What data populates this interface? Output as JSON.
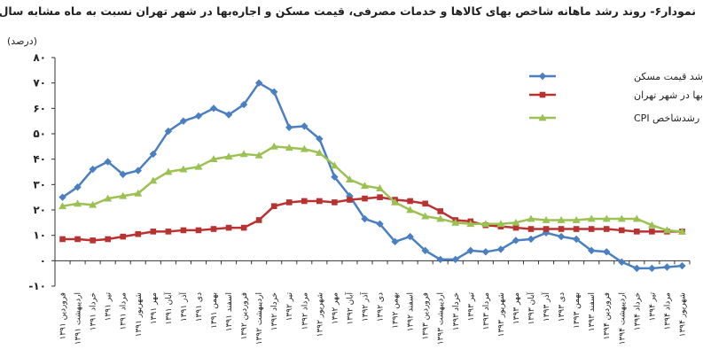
{
  "title": "نمودار۶- روند رشد ماهانه شاخص بهای کالاها و خدمات مصرفی، قیمت مسکن و اجاره‌بها در شهر تهران نسبت به ماه مشابه سال قبل",
  "chart_data": {
    "type": "line",
    "title": "نمودار۶- روند رشد ماهانه شاخص بهای کالاها و خدمات مصرفی، قیمت مسکن و اجاره‌بها در شهر تهران نسبت به ماه مشابه سال قبل",
    "ylabel": "(درصد)",
    "xlabel": "",
    "ylim": [
      -10,
      80
    ],
    "yticks": [
      "-۱۰",
      "۰",
      "۱۰",
      "۲۰",
      "۳۰",
      "۴۰",
      "۵۰",
      "۶۰",
      "۷۰",
      "۸۰"
    ],
    "ytick_values": [
      -10,
      0,
      10,
      20,
      30,
      40,
      50,
      60,
      70,
      80
    ],
    "grid": false,
    "legend_position": "top-right",
    "categories": [
      "فروردین ۱۳۹۱",
      "اردیبهشت ۱۳۹۱",
      "خرداد ۱۳۹۱",
      "تیر ۱۳۹۱",
      "مرداد ۱۳۹۱",
      "شهریور ۱۳۹۱",
      "مهر ۱۳۹۱",
      "آبان ۱۳۹۱",
      "آذر ۱۳۹۱",
      "دی ۱۳۹۱",
      "بهمن ۱۳۹۱",
      "اسفند ۱۳۹۱",
      "فروردین ۱۳۹۲",
      "اردیبهشت ۱۳۹۲",
      "خرداد ۱۳۹۲",
      "تیر ۱۳۹۲",
      "مرداد ۱۳۹۲",
      "شهریور ۱۳۹۲",
      "مهر ۱۳۹۲",
      "آبان ۱۳۹۲",
      "آذر ۱۳۹۲",
      "دی ۱۳۹۲",
      "بهمن ۱۳۹۲",
      "اسفند ۱۳۹۲",
      "فروردین ۱۳۹۳",
      "اردیبهشت ۱۳۹۳",
      "خرداد ۱۳۹۳",
      "تیر ۱۳۹۳",
      "مرداد ۱۳۹۳",
      "شهریور ۱۳۹۳",
      "مهر ۱۳۹۳",
      "آبان ۱۳۹۳",
      "آذر ۱۳۹۳",
      "دی ۱۳۹۳",
      "بهمن ۱۳۹۳",
      "اسفند ۱۳۹۳",
      "فروردین ۱۳۹۴",
      "اردیبهشت ۱۳۹۴",
      "خرداد ۱۳۹۴",
      "تیر ۱۳۹۴",
      "مرداد ۱۳۹۴",
      "شهریور ۱۳۹۴"
    ],
    "series": [
      {
        "name": "نرخ رشد قیمت مسکن",
        "color": "#4a7fc1",
        "marker": "diamond",
        "values": [
          25,
          29,
          36,
          39,
          34,
          35.5,
          42,
          51,
          55,
          57,
          60,
          57.5,
          61.5,
          70,
          66.5,
          52.5,
          53,
          48,
          33,
          25.5,
          16.5,
          14.5,
          7.5,
          9.5,
          4,
          0.5,
          0.5,
          4,
          3.5,
          4.5,
          8,
          8.5,
          11,
          9.5,
          8.5,
          4,
          3.5,
          -0.5,
          -3,
          -3,
          -2.5,
          -2
        ]
      },
      {
        "name": "نرخ رشد اجاره بها در شهر تهران",
        "color": "#b83232",
        "marker": "square",
        "values": [
          8.5,
          8.5,
          8,
          8.5,
          9.5,
          10.5,
          11.5,
          11.5,
          12,
          12,
          12.5,
          13,
          13,
          16,
          21.5,
          23,
          23.5,
          23.5,
          23,
          24,
          24.5,
          25,
          24,
          23.5,
          22.5,
          19.5,
          16,
          15.5,
          14,
          13.5,
          13,
          12.5,
          12.5,
          12.5,
          12.5,
          12.5,
          12.5,
          12,
          11.5,
          11.5,
          11.5,
          11.5
        ]
      },
      {
        "name": "نرخ رشدشاخص CPI",
        "color": "#9bc152",
        "marker": "triangle",
        "values": [
          21.5,
          22.5,
          22,
          24.5,
          25.5,
          26.5,
          31.5,
          35,
          36,
          37,
          40,
          41,
          42,
          41.5,
          45,
          44.5,
          44,
          42.5,
          37.5,
          32,
          29.5,
          28.5,
          23,
          20,
          17.5,
          16.5,
          15,
          14.5,
          14.5,
          14.5,
          15,
          16.5,
          16,
          16,
          16,
          16.5,
          16.5,
          16.5,
          16.5,
          14,
          12,
          11.5
        ]
      }
    ]
  }
}
